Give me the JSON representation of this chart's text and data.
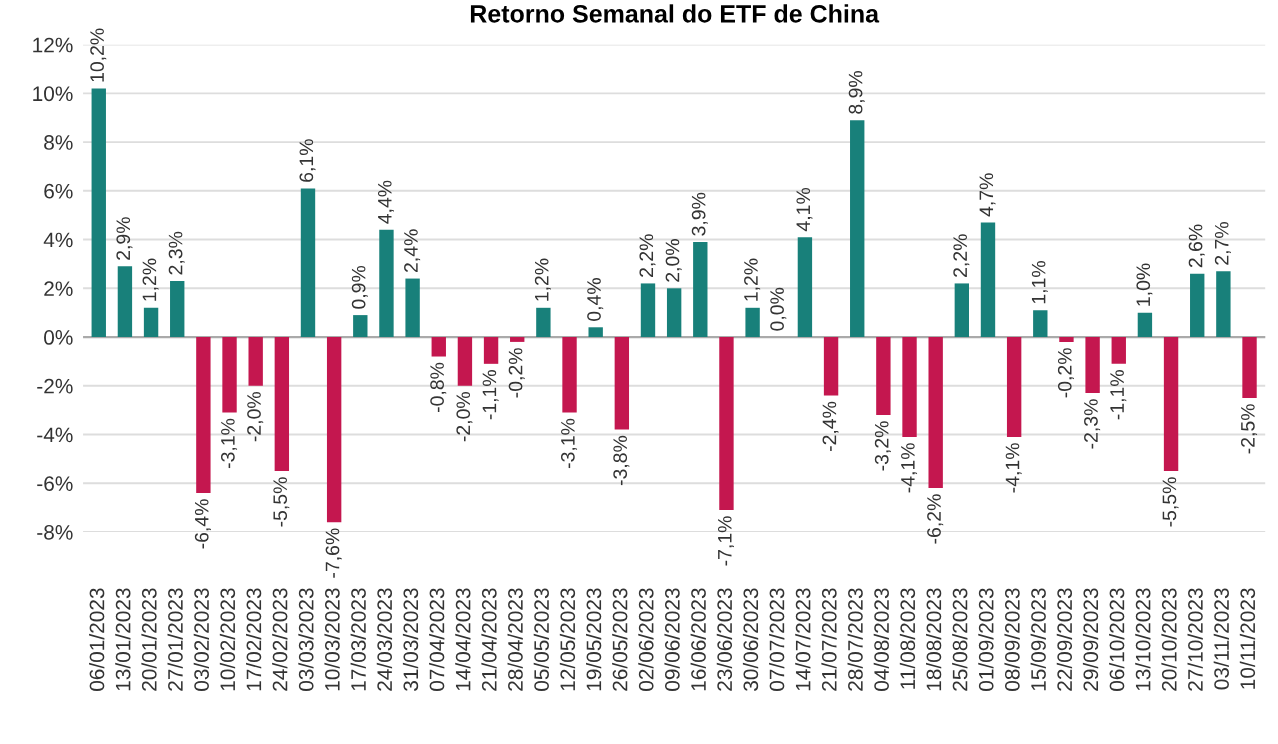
{
  "chart_data": {
    "type": "bar",
    "title": "Retorno Semanal do ETF de China",
    "categories": [
      "06/01/2023",
      "13/01/2023",
      "20/01/2023",
      "27/01/2023",
      "03/02/2023",
      "10/02/2023",
      "17/02/2023",
      "24/02/2023",
      "03/03/2023",
      "10/03/2023",
      "17/03/2023",
      "24/03/2023",
      "31/03/2023",
      "07/04/2023",
      "14/04/2023",
      "21/04/2023",
      "28/04/2023",
      "05/05/2023",
      "12/05/2023",
      "19/05/2023",
      "26/05/2023",
      "02/06/2023",
      "09/06/2023",
      "16/06/2023",
      "23/06/2023",
      "30/06/2023",
      "07/07/2023",
      "14/07/2023",
      "21/07/2023",
      "28/07/2023",
      "04/08/2023",
      "11/08/2023",
      "18/08/2023",
      "25/08/2023",
      "01/09/2023",
      "08/09/2023",
      "15/09/2023",
      "22/09/2023",
      "29/09/2023",
      "06/10/2023",
      "13/10/2023",
      "20/10/2023",
      "27/10/2023",
      "03/11/2023",
      "10/11/2023"
    ],
    "values": [
      10.2,
      2.9,
      1.2,
      2.3,
      -6.4,
      -3.1,
      -2.0,
      -5.5,
      6.1,
      -7.6,
      0.9,
      4.4,
      2.4,
      -0.8,
      -2.0,
      -1.1,
      -0.2,
      1.2,
      -3.1,
      0.4,
      -3.8,
      2.2,
      2.0,
      3.9,
      -7.1,
      1.2,
      0.0,
      4.1,
      -2.4,
      8.9,
      -3.2,
      -4.1,
      -6.2,
      2.2,
      4.7,
      -4.1,
      1.1,
      -0.2,
      -2.3,
      -1.1,
      1.0,
      -5.5,
      2.6,
      2.7,
      -2.5
    ],
    "value_labels": [
      "10,2%",
      "2,9%",
      "1,2%",
      "2,3%",
      "-6,4%",
      "-3,1%",
      "-2,0%",
      "-5,5%",
      "6,1%",
      "-7,6%",
      "0,9%",
      "4,4%",
      "2,4%",
      "-0,8%",
      "-2,0%",
      "-1,1%",
      "-0,2%",
      "1,2%",
      "-3,1%",
      "0,4%",
      "-3,8%",
      "2,2%",
      "2,0%",
      "3,9%",
      "-7,1%",
      "1,2%",
      "0,0%",
      "4,1%",
      "-2,4%",
      "8,9%",
      "-3,2%",
      "-4,1%",
      "-6,2%",
      "2,2%",
      "4,7%",
      "-4,1%",
      "1,1%",
      "-0,2%",
      "-2,3%",
      "-1,1%",
      "1,0%",
      "-5,5%",
      "2,6%",
      "2,7%",
      "-2,5%"
    ],
    "colors": [
      "#18807a",
      "#18807a",
      "#18807a",
      "#18807a",
      "#c4174f",
      "#c4174f",
      "#c4174f",
      "#c4174f",
      "#18807a",
      "#c4174f",
      "#18807a",
      "#18807a",
      "#18807a",
      "#c4174f",
      "#c4174f",
      "#c4174f",
      "#c4174f",
      "#18807a",
      "#c4174f",
      "#18807a",
      "#c4174f",
      "#18807a",
      "#18807a",
      "#18807a",
      "#c4174f",
      "#18807a",
      "#18807a",
      "#18807a",
      "#c4174f",
      "#18807a",
      "#c4174f",
      "#c4174f",
      "#c4174f",
      "#18807a",
      "#18807a",
      "#c4174f",
      "#18807a",
      "#c4174f",
      "#c4174f",
      "#c4174f",
      "#18807a",
      "#c4174f",
      "#18807a",
      "#18807a",
      "#c4174f"
    ],
    "ylim": [
      -8,
      12
    ],
    "yticks": [
      {
        "value": -8,
        "label": "-8%"
      },
      {
        "value": -6,
        "label": "-6%"
      },
      {
        "value": -4,
        "label": "-4%"
      },
      {
        "value": -2,
        "label": "-2%"
      },
      {
        "value": 0,
        "label": "0%"
      },
      {
        "value": 2,
        "label": "2%"
      },
      {
        "value": 4,
        "label": "4%"
      },
      {
        "value": 6,
        "label": "6%"
      },
      {
        "value": 8,
        "label": "8%"
      },
      {
        "value": 10,
        "label": "10%"
      },
      {
        "value": 12,
        "label": "12%"
      }
    ],
    "grid": "y"
  }
}
